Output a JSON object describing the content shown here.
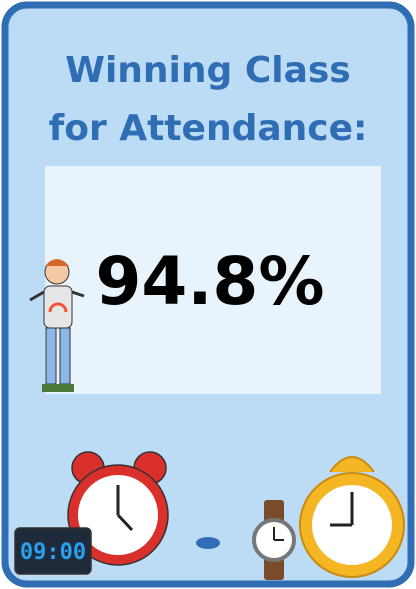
{
  "poster": {
    "title": [
      "Winning Class",
      "for Attendance:"
    ],
    "value": "94.8%",
    "clock_display": "09:00"
  }
}
